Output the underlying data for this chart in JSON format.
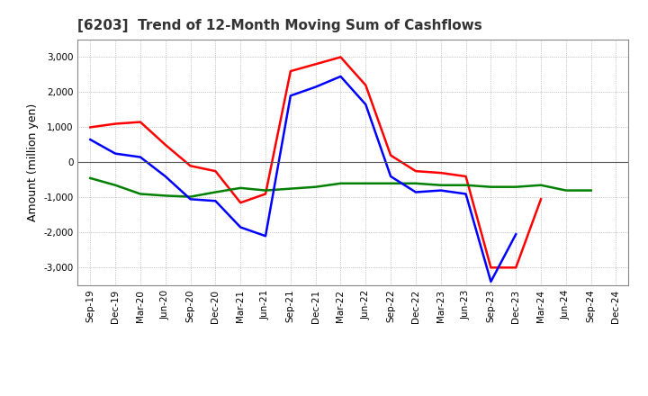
{
  "title": "[6203]  Trend of 12-Month Moving Sum of Cashflows",
  "ylabel": "Amount (million yen)",
  "x_labels": [
    "Sep-19",
    "Dec-19",
    "Mar-20",
    "Jun-20",
    "Sep-20",
    "Dec-20",
    "Mar-21",
    "Jun-21",
    "Sep-21",
    "Dec-21",
    "Mar-22",
    "Jun-22",
    "Sep-22",
    "Dec-22",
    "Mar-23",
    "Jun-23",
    "Sep-23",
    "Dec-23",
    "Mar-24",
    "Jun-24",
    "Sep-24",
    "Dec-24"
  ],
  "operating_cashflow": [
    1000,
    1100,
    1150,
    500,
    -100,
    -250,
    -1150,
    -900,
    2600,
    2800,
    3000,
    2200,
    200,
    -250,
    -300,
    -400,
    -3000,
    -3000,
    -1050,
    null,
    null,
    null
  ],
  "investing_cashflow": [
    -450,
    -650,
    -900,
    -950,
    -980,
    -850,
    -730,
    -800,
    -750,
    -700,
    -600,
    -600,
    -600,
    -600,
    -650,
    -650,
    -700,
    -700,
    -650,
    -800,
    -800,
    null
  ],
  "free_cashflow": [
    650,
    250,
    150,
    -400,
    -1050,
    -1100,
    -1850,
    -2100,
    1900,
    2150,
    2450,
    1650,
    -400,
    -850,
    -800,
    -900,
    -3400,
    -2050,
    null,
    null,
    null,
    null
  ],
  "operating_color": "#ff0000",
  "investing_color": "#008000",
  "free_color": "#0000ff",
  "ylim": [
    -3500,
    3500
  ],
  "yticks": [
    -3000,
    -2000,
    -1000,
    0,
    1000,
    2000,
    3000
  ],
  "background_color": "#ffffff",
  "grid_color": "#999999"
}
